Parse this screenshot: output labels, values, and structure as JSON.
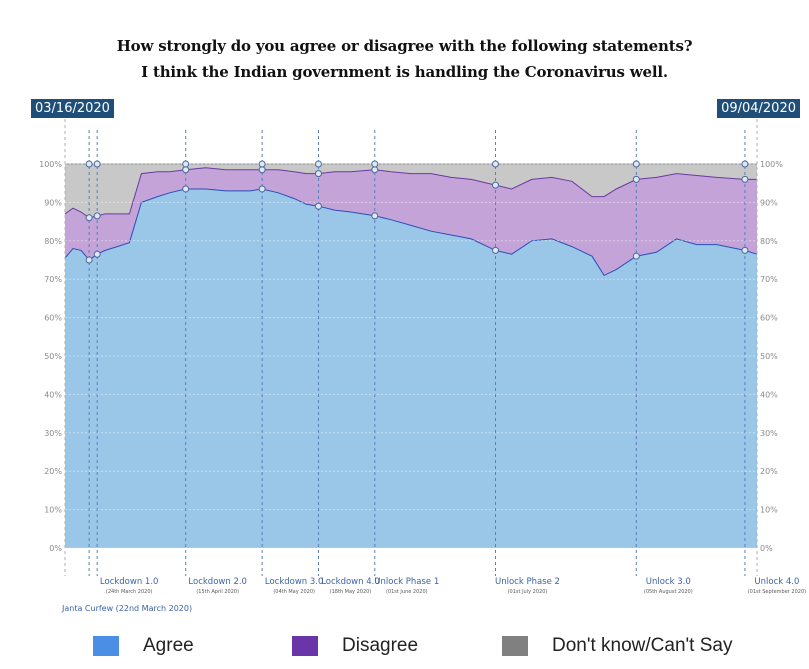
{
  "chart_data": {
    "type": "area",
    "stacked": true,
    "title": "How strongly do you agree or disagree with the following statements?",
    "subtitle": "I think the Indian government is handling the Coronavirus well.",
    "date_start": "03/16/2020",
    "date_end": "09/04/2020",
    "x_start": "2020-03-16",
    "x_end": "2020-09-04",
    "ylim": [
      0,
      100
    ],
    "y_ticks": [
      "0%",
      "10%",
      "20%",
      "30%",
      "40%",
      "50%",
      "60%",
      "70%",
      "80%",
      "90%",
      "100%"
    ],
    "grid": true,
    "series": [
      {
        "name": "Agree",
        "color": "#9ac6e8",
        "line_color": "#2a4fb8",
        "x": [
          "2020-03-16",
          "2020-03-18",
          "2020-03-20",
          "2020-03-22",
          "2020-03-24",
          "2020-03-26",
          "2020-03-29",
          "2020-04-01",
          "2020-04-04",
          "2020-04-08",
          "2020-04-11",
          "2020-04-15",
          "2020-04-20",
          "2020-04-25",
          "2020-05-01",
          "2020-05-04",
          "2020-05-08",
          "2020-05-12",
          "2020-05-15",
          "2020-05-18",
          "2020-05-22",
          "2020-05-26",
          "2020-06-01",
          "2020-06-05",
          "2020-06-10",
          "2020-06-15",
          "2020-06-20",
          "2020-06-25",
          "2020-07-01",
          "2020-07-05",
          "2020-07-10",
          "2020-07-15",
          "2020-07-20",
          "2020-07-25",
          "2020-07-28",
          "2020-07-31",
          "2020-08-05",
          "2020-08-10",
          "2020-08-15",
          "2020-08-20",
          "2020-08-25",
          "2020-09-01",
          "2020-09-04"
        ],
        "values": [
          75.5,
          78,
          77.5,
          75,
          76.5,
          77.5,
          78.5,
          79.5,
          90,
          91.5,
          92.5,
          93.5,
          93.5,
          93,
          93,
          93.5,
          92.5,
          91,
          89.5,
          89,
          88,
          87.5,
          86.5,
          85.5,
          84,
          82.5,
          81.5,
          80.5,
          77.5,
          76.5,
          80,
          80.5,
          78.5,
          76,
          71,
          72.5,
          76,
          77,
          80.5,
          79,
          79,
          77.5,
          76.5
        ]
      },
      {
        "name": "Disagree",
        "color": "#c4a3d8",
        "line_color": "#6a3aa0",
        "x": [
          "2020-03-16",
          "2020-03-18",
          "2020-03-20",
          "2020-03-22",
          "2020-03-24",
          "2020-03-26",
          "2020-03-29",
          "2020-04-01",
          "2020-04-04",
          "2020-04-08",
          "2020-04-11",
          "2020-04-15",
          "2020-04-20",
          "2020-04-25",
          "2020-05-01",
          "2020-05-04",
          "2020-05-08",
          "2020-05-12",
          "2020-05-15",
          "2020-05-18",
          "2020-05-22",
          "2020-05-26",
          "2020-06-01",
          "2020-06-05",
          "2020-06-10",
          "2020-06-15",
          "2020-06-20",
          "2020-06-25",
          "2020-07-01",
          "2020-07-05",
          "2020-07-10",
          "2020-07-15",
          "2020-07-20",
          "2020-07-25",
          "2020-07-28",
          "2020-07-31",
          "2020-08-05",
          "2020-08-10",
          "2020-08-15",
          "2020-08-20",
          "2020-08-25",
          "2020-09-01",
          "2020-09-04"
        ],
        "values": [
          11.5,
          10.5,
          10,
          11,
          10,
          9.5,
          8.5,
          7.5,
          7.5,
          6.5,
          5.5,
          5,
          5.5,
          5.5,
          5.5,
          5,
          6,
          7,
          8,
          8.5,
          10,
          10.5,
          12,
          12.5,
          13.5,
          15,
          15,
          15.5,
          17,
          17,
          16,
          16,
          17,
          15.5,
          20.5,
          21,
          20,
          19.5,
          17,
          18,
          17.5,
          18.5,
          19.5
        ]
      },
      {
        "name": "Don't know/Can't Say",
        "color": "#c8c8c8",
        "line_color": "#888888",
        "x": [
          "2020-03-16",
          "2020-03-18",
          "2020-03-20",
          "2020-03-22",
          "2020-03-24",
          "2020-03-26",
          "2020-03-29",
          "2020-04-01",
          "2020-04-04",
          "2020-04-08",
          "2020-04-11",
          "2020-04-15",
          "2020-04-20",
          "2020-04-25",
          "2020-05-01",
          "2020-05-04",
          "2020-05-08",
          "2020-05-12",
          "2020-05-15",
          "2020-05-18",
          "2020-05-22",
          "2020-05-26",
          "2020-06-01",
          "2020-06-05",
          "2020-06-10",
          "2020-06-15",
          "2020-06-20",
          "2020-06-25",
          "2020-07-01",
          "2020-07-05",
          "2020-07-10",
          "2020-07-15",
          "2020-07-20",
          "2020-07-25",
          "2020-07-28",
          "2020-07-31",
          "2020-08-05",
          "2020-08-10",
          "2020-08-15",
          "2020-08-20",
          "2020-08-25",
          "2020-09-01",
          "2020-09-04"
        ],
        "values": [
          13,
          11.5,
          12.5,
          14,
          13.5,
          13,
          13,
          13,
          2.5,
          2,
          2,
          1.5,
          1,
          1.5,
          1.5,
          1.5,
          1.5,
          2,
          2.5,
          2.5,
          2,
          2,
          1.5,
          2,
          2.5,
          2.5,
          3.5,
          4,
          5.5,
          6.5,
          4,
          3.5,
          4.5,
          8.5,
          8.5,
          6.5,
          4,
          3.5,
          2.5,
          3,
          3.5,
          4,
          4
        ]
      }
    ],
    "events": [
      {
        "label": "Janta Curfew",
        "date_label": "(22nd March 2020)",
        "date": "2020-03-22"
      },
      {
        "label": "Lockdown 1.0",
        "date_label": "(24th March 2020)",
        "date": "2020-03-24"
      },
      {
        "label": "Lockdown 2.0",
        "date_label": "(15th April 2020)",
        "date": "2020-04-15"
      },
      {
        "label": "Lockdown 3.0",
        "date_label": "(04th May 2020)",
        "date": "2020-05-04"
      },
      {
        "label": "Lockdown 4.0",
        "date_label": "(18th May 2020)",
        "date": "2020-05-18"
      },
      {
        "label": "Unlock Phase 1",
        "date_label": "(01st June 2020)",
        "date": "2020-06-01"
      },
      {
        "label": "Unlock Phase 2",
        "date_label": "(01st July 2020)",
        "date": "2020-07-01"
      },
      {
        "label": "Unlock 3.0",
        "date_label": "(05th August 2020)",
        "date": "2020-08-05"
      },
      {
        "label": "Unlock 4.0",
        "date_label": "(01st September 2020)",
        "date": "2020-09-01"
      }
    ],
    "legend_position": "bottom"
  }
}
